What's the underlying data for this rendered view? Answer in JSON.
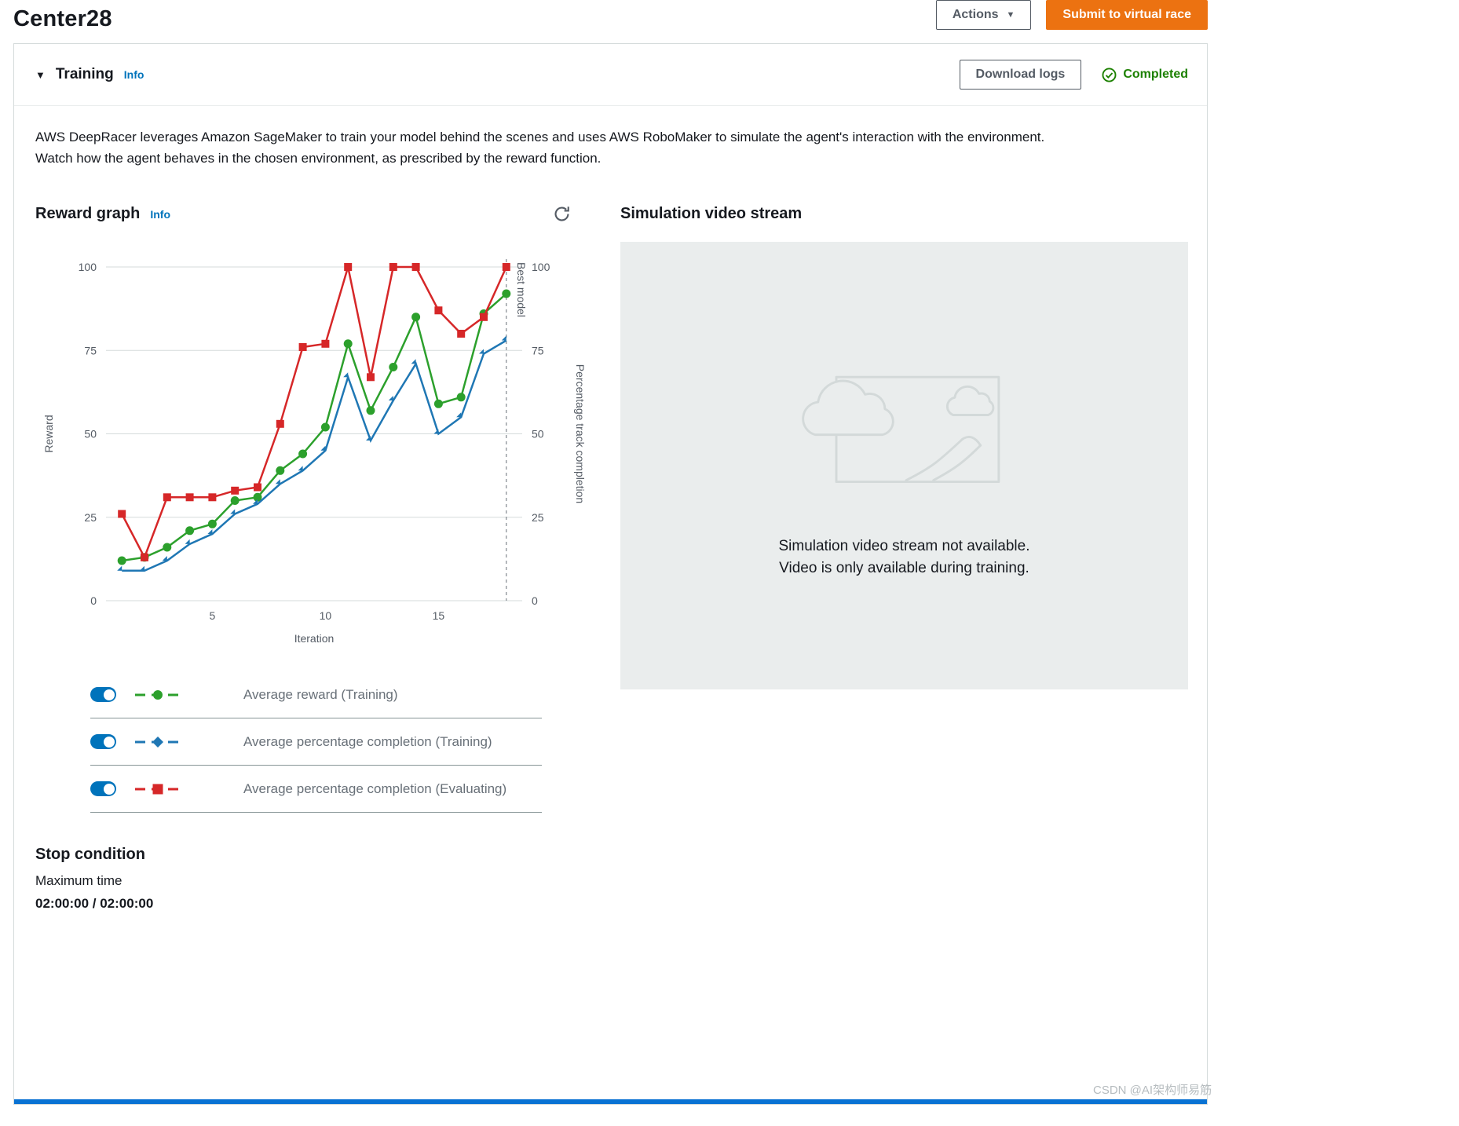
{
  "page": {
    "title": "Center28",
    "watermark": "CSDN @AI架构师易筋"
  },
  "header": {
    "actions_label": "Actions",
    "submit_label": "Submit to virtual race"
  },
  "training": {
    "title": "Training",
    "info_label": "Info",
    "download_logs_label": "Download logs",
    "status": "Completed",
    "description": [
      "AWS DeepRacer leverages Amazon SageMaker to train your model behind the scenes and uses AWS RoboMaker to simulate the agent's interaction with the environment.",
      "Watch how the agent behaves in the chosen environment, as prescribed by the reward function."
    ]
  },
  "reward_graph": {
    "title": "Reward graph",
    "info_label": "Info"
  },
  "stop_condition": {
    "title": "Stop condition",
    "label": "Maximum time",
    "value": "02:00:00 / 02:00:00"
  },
  "simulation": {
    "title": "Simulation video stream",
    "message": [
      "Simulation video stream not available.",
      "Video is only available during training."
    ]
  },
  "chart_data": {
    "type": "line",
    "title": "Reward graph",
    "xlabel": "Iteration",
    "ylabel_left": "Reward",
    "ylabel_right": "Percentage track completion",
    "x": [
      1,
      2,
      3,
      4,
      5,
      6,
      7,
      8,
      9,
      10,
      11,
      12,
      13,
      14,
      15,
      16,
      17,
      18
    ],
    "xticks": [
      5,
      10,
      15
    ],
    "yticks": [
      0,
      25,
      50,
      75,
      100
    ],
    "xlim": [
      0.3,
      18.7
    ],
    "ylim": [
      0,
      100
    ],
    "grid": "horizontal",
    "legend_position": "below",
    "best_model_iteration": 18,
    "best_model_label": "Best model",
    "series_enabled": [
      true,
      true,
      true
    ],
    "series": [
      {
        "name": "Average reward (Training)",
        "color": "#2ca02c",
        "marker": "circle",
        "values": [
          12,
          13,
          16,
          21,
          23,
          30,
          31,
          39,
          44,
          52,
          77,
          57,
          70,
          85,
          59,
          61,
          86,
          92
        ]
      },
      {
        "name": "Average percentage completion (Training)",
        "color": "#1f77b4",
        "marker": "diamond",
        "values": [
          9,
          9,
          12,
          17,
          20,
          26,
          29,
          35,
          39,
          45,
          67,
          48,
          60,
          71,
          50,
          55,
          74,
          78
        ]
      },
      {
        "name": "Average percentage completion (Evaluating)",
        "color": "#d62728",
        "marker": "square",
        "values": [
          26,
          13,
          31,
          31,
          31,
          33,
          34,
          53,
          76,
          77,
          100,
          67,
          100,
          100,
          87,
          80,
          85,
          100
        ]
      }
    ]
  }
}
